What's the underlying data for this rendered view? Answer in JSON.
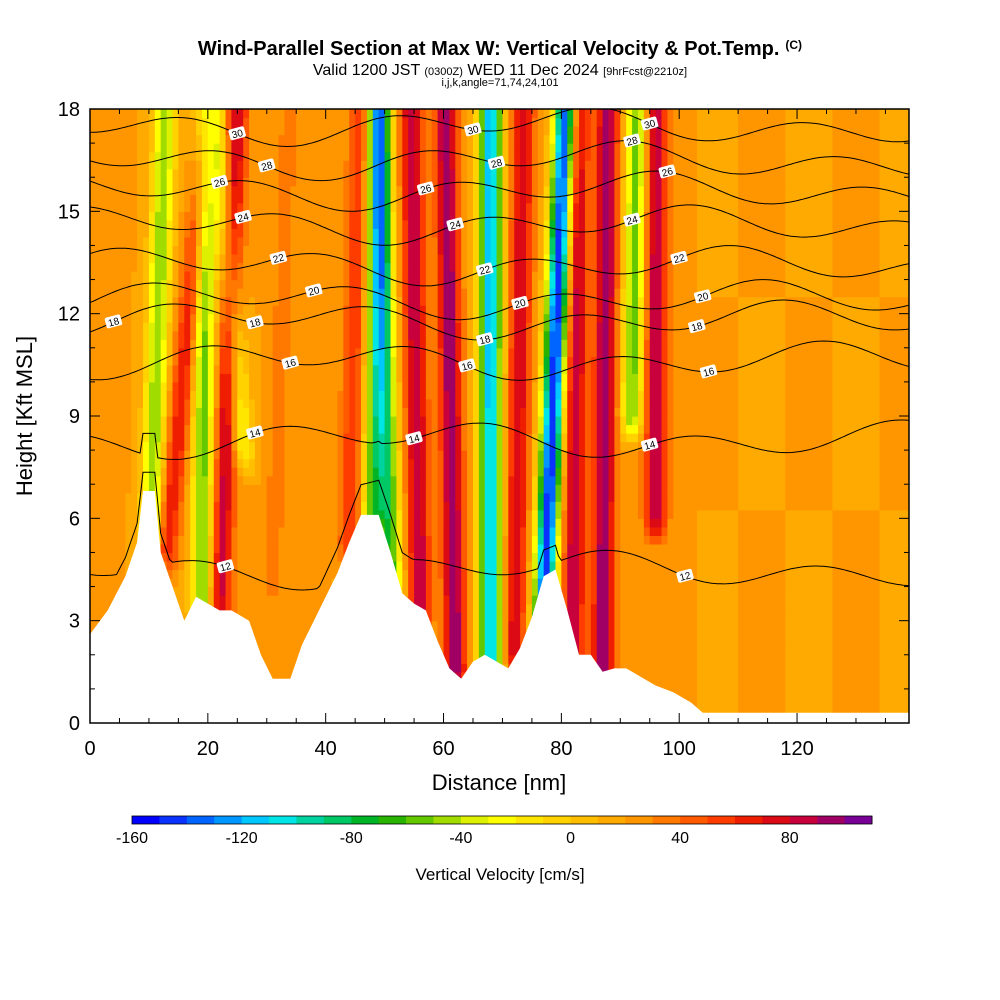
{
  "chart_data": {
    "type": "heatmap",
    "title": "Wind-Parallel Section at Max W: Vertical Velocity & Pot.Temp.",
    "title_mark": "(C)",
    "subtitle_main": "Valid 1200 JST",
    "subtitle_utc": "(0300Z)",
    "subtitle_date": "WED 11 Dec 2024",
    "subtitle_fcst": "[9hrFcst@2210z]",
    "indices": "i,j,k,angle=71,74,24,101",
    "xlabel": "Distance [nm]",
    "ylabel": "Height [Kft MSL]",
    "xlim": [
      0,
      139
    ],
    "ylim": [
      0,
      18
    ],
    "x_ticks": [
      "0",
      "20",
      "40",
      "60",
      "80",
      "100",
      "120"
    ],
    "y_ticks": [
      "0",
      "3",
      "6",
      "9",
      "12",
      "15",
      "18"
    ],
    "colorbar": {
      "label": "Vertical Velocity [cm/s]",
      "range": [
        -160,
        110
      ],
      "step": 10,
      "tick_labels": [
        "-160",
        "-120",
        "-80",
        "-40",
        "0",
        "40",
        "80"
      ],
      "colors": [
        "#0000ff",
        "#0a32ff",
        "#0064ff",
        "#0096ff",
        "#00c8ff",
        "#00e6e6",
        "#00d2a0",
        "#00c864",
        "#00b428",
        "#28b400",
        "#64c800",
        "#a0dc00",
        "#dcf000",
        "#ffff00",
        "#ffe600",
        "#ffd200",
        "#ffbe00",
        "#ffaa00",
        "#ff9600",
        "#ff7800",
        "#ff5a00",
        "#ff3c00",
        "#f01e00",
        "#dc0a14",
        "#c8003c",
        "#a00064",
        "#780096"
      ]
    },
    "terrain_height_kft": [
      [
        0,
        2.6
      ],
      [
        3,
        3.3
      ],
      [
        6,
        4.3
      ],
      [
        8,
        5.3
      ],
      [
        9,
        6.8
      ],
      [
        11,
        6.8
      ],
      [
        12,
        5.0
      ],
      [
        14,
        4.0
      ],
      [
        16,
        3.0
      ],
      [
        18,
        3.7
      ],
      [
        20,
        3.5
      ],
      [
        22,
        3.3
      ],
      [
        24,
        3.3
      ],
      [
        27,
        3.0
      ],
      [
        29,
        2.0
      ],
      [
        31,
        1.3
      ],
      [
        34,
        1.3
      ],
      [
        36,
        2.3
      ],
      [
        38,
        3.0
      ],
      [
        40,
        3.7
      ],
      [
        42,
        4.4
      ],
      [
        44,
        5.3
      ],
      [
        46,
        6.1
      ],
      [
        49,
        6.1
      ],
      [
        51,
        5.0
      ],
      [
        53,
        3.8
      ],
      [
        55,
        3.5
      ],
      [
        57,
        3.3
      ],
      [
        59,
        2.4
      ],
      [
        61,
        1.6
      ],
      [
        63,
        1.3
      ],
      [
        65,
        1.8
      ],
      [
        67,
        2.0
      ],
      [
        69,
        1.8
      ],
      [
        71,
        1.6
      ],
      [
        73,
        2.2
      ],
      [
        75,
        3.1
      ],
      [
        77,
        4.3
      ],
      [
        79,
        4.5
      ],
      [
        81,
        3.3
      ],
      [
        83,
        2.0
      ],
      [
        85,
        2.0
      ],
      [
        87,
        1.5
      ],
      [
        89,
        1.6
      ],
      [
        91,
        1.6
      ],
      [
        93,
        1.4
      ],
      [
        96,
        1.1
      ],
      [
        99,
        0.9
      ],
      [
        102,
        0.6
      ],
      [
        104,
        0.3
      ],
      [
        106,
        0.3
      ],
      [
        139,
        0.3
      ]
    ],
    "vertical_velocity_bands": [
      {
        "x": 3,
        "y_bottom": 3.5,
        "y_top": 18,
        "w": 30,
        "lean_nm_per_kft": 0.1
      },
      {
        "x": 10,
        "y_bottom": 4.0,
        "y_top": 18,
        "w": -50,
        "lean_nm_per_kft": 0.2
      },
      {
        "x": 13,
        "y_bottom": 5.0,
        "y_top": 18,
        "w": 70,
        "lean_nm_per_kft": 0.55
      },
      {
        "x": 19,
        "y_bottom": 3.5,
        "y_top": 18,
        "w": -55,
        "lean_nm_per_kft": 0.05
      },
      {
        "x": 22,
        "y_bottom": 3.3,
        "y_top": 18,
        "w": 85,
        "lean_nm_per_kft": 0.2
      },
      {
        "x": 26,
        "y_bottom": 8,
        "y_top": 18,
        "w": -25,
        "lean_nm_per_kft": -0.45
      },
      {
        "x": 31,
        "y_bottom": 4,
        "y_top": 18,
        "w": 35,
        "lean_nm_per_kft": 0.2
      },
      {
        "x": 44,
        "y_bottom": 5.3,
        "y_top": 18,
        "w": 60,
        "lean_nm_per_kft": 0.15
      },
      {
        "x": 48,
        "y_bottom": 6.1,
        "y_top": 18,
        "w": -55,
        "lean_nm_per_kft": 0.1
      },
      {
        "x": 51,
        "y_bottom": 4.0,
        "y_top": 18,
        "w": -70,
        "lean_nm_per_kft": -0.15
      },
      {
        "x": 56,
        "y_bottom": 3.3,
        "y_top": 18,
        "w": 90,
        "lean_nm_per_kft": -0.1
      },
      {
        "x": 62,
        "y_bottom": 1.5,
        "y_top": 18,
        "w": 100,
        "lean_nm_per_kft": -0.1
      },
      {
        "x": 68,
        "y_bottom": 1.6,
        "y_top": 18,
        "w": -120,
        "lean_nm_per_kft": 0.0
      },
      {
        "x": 72,
        "y_bottom": 2.0,
        "y_top": 18,
        "w": 80,
        "lean_nm_per_kft": 0.1
      },
      {
        "x": 77,
        "y_bottom": 3.0,
        "y_top": 18,
        "w": -150,
        "lean_nm_per_kft": 0.25
      },
      {
        "x": 82,
        "y_bottom": 2.0,
        "y_top": 18,
        "w": 90,
        "lean_nm_per_kft": 0.05
      },
      {
        "x": 87,
        "y_bottom": 1.6,
        "y_top": 18,
        "w": 100,
        "lean_nm_per_kft": 0.05
      },
      {
        "x": 92,
        "y_bottom": 9,
        "y_top": 18,
        "w": -55,
        "lean_nm_per_kft": 0.1
      },
      {
        "x": 96,
        "y_bottom": 6,
        "y_top": 18,
        "w": 90,
        "lean_nm_per_kft": 0.0
      },
      {
        "x": 103,
        "y_bottom": 0.5,
        "y_top": 18,
        "w": 25,
        "lean_nm_per_kft": 0.0
      }
    ],
    "pot_temp_contours": [
      {
        "label": "12",
        "base_kft": 4.5,
        "labels_at_nm": [
          23,
          101
        ]
      },
      {
        "label": "14",
        "base_kft": 8.3,
        "labels_at_nm": [
          28,
          55,
          95
        ]
      },
      {
        "label": "16",
        "base_kft": 10.6,
        "labels_at_nm": [
          34,
          64,
          105
        ]
      },
      {
        "label": "18",
        "base_kft": 11.8,
        "labels_at_nm": [
          4,
          28,
          67,
          103
        ]
      },
      {
        "label": "20",
        "base_kft": 12.4,
        "labels_at_nm": [
          38,
          73,
          104
        ]
      },
      {
        "label": "22",
        "base_kft": 13.4,
        "labels_at_nm": [
          32,
          67,
          100
        ]
      },
      {
        "label": "24",
        "base_kft": 14.6,
        "labels_at_nm": [
          26,
          62,
          92
        ]
      },
      {
        "label": "26",
        "base_kft": 15.6,
        "labels_at_nm": [
          22,
          57,
          98
        ]
      },
      {
        "label": "28",
        "base_kft": 16.5,
        "labels_at_nm": [
          30,
          69,
          92
        ]
      },
      {
        "label": "30",
        "base_kft": 17.5,
        "labels_at_nm": [
          25,
          65,
          95
        ]
      }
    ]
  }
}
